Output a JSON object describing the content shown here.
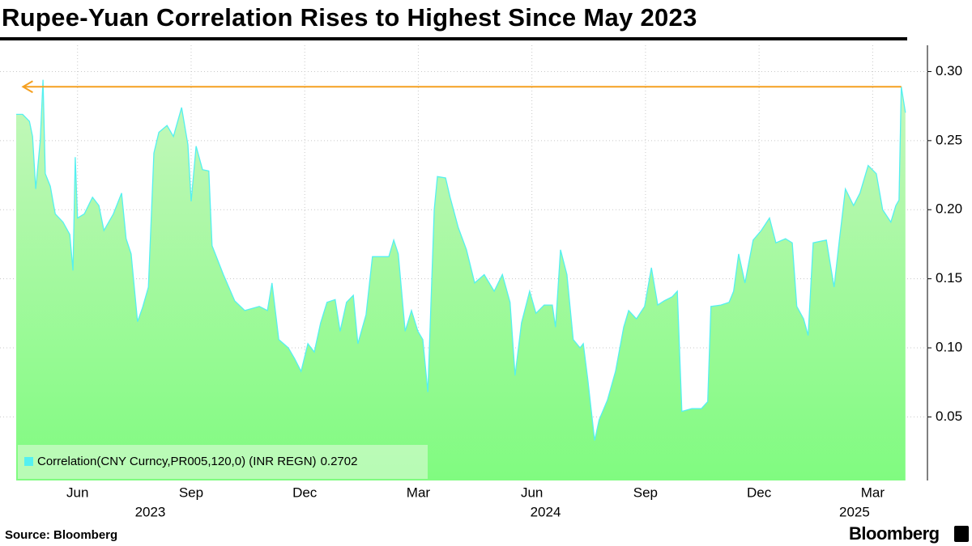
{
  "chart_data": {
    "type": "area",
    "title": "Rupee-Yuan Correlation Rises to Highest Since May 2023",
    "source": "Source: Bloomberg",
    "brand": "Bloomberg",
    "x": [
      2023.285,
      2023.299,
      2023.314,
      2023.321,
      2023.328,
      2023.338,
      2023.344,
      2023.349,
      2023.36,
      2023.371,
      2023.388,
      2023.403,
      2023.41,
      2023.415,
      2023.42,
      2023.435,
      2023.453,
      2023.467,
      2023.478,
      2023.499,
      2023.517,
      2023.527,
      2023.538,
      2023.552,
      2023.563,
      2023.576,
      2023.588,
      2023.599,
      2023.617,
      2023.631,
      2023.649,
      2023.663,
      2023.67,
      2023.681,
      2023.695,
      2023.709,
      2023.716,
      2023.741,
      2023.766,
      2023.788,
      2023.82,
      2023.838,
      2023.848,
      2023.863,
      2023.884,
      2023.898,
      2023.912,
      2023.927,
      2023.941,
      2023.955,
      2023.969,
      2023.987,
      2023.998,
      2024.012,
      2024.027,
      2024.037,
      2024.055,
      2024.069,
      2024.087,
      2024.105,
      2024.116,
      2024.126,
      2024.141,
      2024.155,
      2024.169,
      2024.18,
      2024.191,
      2024.205,
      2024.212,
      2024.23,
      2024.24,
      2024.258,
      2024.276,
      2024.294,
      2024.315,
      2024.337,
      2024.355,
      2024.372,
      2024.383,
      2024.397,
      2024.415,
      2024.429,
      2024.447,
      2024.465,
      2024.472,
      2024.483,
      2024.497,
      2024.511,
      2024.526,
      2024.533,
      2024.543,
      2024.558,
      2024.568,
      2024.586,
      2024.604,
      2024.622,
      2024.633,
      2024.65,
      2024.668,
      2024.683,
      2024.697,
      2024.711,
      2024.729,
      2024.74,
      2024.75,
      2024.772,
      2024.793,
      2024.807,
      2024.814,
      2024.836,
      2024.854,
      2024.864,
      2024.875,
      2024.889,
      2024.907,
      2024.925,
      2024.943,
      2024.957,
      2024.978,
      2024.993,
      2025.003,
      2025.018,
      2025.028,
      2025.039,
      2025.068,
      2025.085,
      2025.096,
      2025.11,
      2025.128,
      2025.142,
      2025.16,
      2025.178,
      2025.192,
      2025.21,
      2025.221,
      2025.228,
      2025.233,
      2025.242
    ],
    "series": [
      {
        "name": "Correlation(CNY Curncy,PR005,120,0) (INR REGN)",
        "color": "#55f0f0",
        "fill_top": "#c6f7bd",
        "fill_bottom": "#80fb80",
        "values": [
          0.269,
          0.269,
          0.264,
          0.253,
          0.215,
          0.25,
          0.294,
          0.226,
          0.217,
          0.197,
          0.191,
          0.182,
          0.156,
          0.238,
          0.194,
          0.197,
          0.209,
          0.203,
          0.185,
          0.197,
          0.212,
          0.179,
          0.168,
          0.119,
          0.129,
          0.144,
          0.241,
          0.256,
          0.261,
          0.253,
          0.274,
          0.247,
          0.206,
          0.246,
          0.229,
          0.228,
          0.174,
          0.153,
          0.134,
          0.127,
          0.13,
          0.127,
          0.147,
          0.106,
          0.1,
          0.092,
          0.083,
          0.103,
          0.097,
          0.118,
          0.133,
          0.135,
          0.112,
          0.133,
          0.138,
          0.103,
          0.124,
          0.166,
          0.166,
          0.166,
          0.178,
          0.168,
          0.112,
          0.127,
          0.112,
          0.106,
          0.068,
          0.2,
          0.224,
          0.223,
          0.209,
          0.187,
          0.171,
          0.147,
          0.153,
          0.141,
          0.153,
          0.133,
          0.08,
          0.118,
          0.141,
          0.125,
          0.131,
          0.131,
          0.115,
          0.171,
          0.153,
          0.106,
          0.1,
          0.103,
          0.077,
          0.033,
          0.048,
          0.062,
          0.083,
          0.115,
          0.127,
          0.121,
          0.13,
          0.158,
          0.131,
          0.134,
          0.137,
          0.141,
          0.054,
          0.056,
          0.056,
          0.061,
          0.13,
          0.131,
          0.133,
          0.141,
          0.168,
          0.147,
          0.178,
          0.185,
          0.194,
          0.176,
          0.179,
          0.176,
          0.13,
          0.121,
          0.109,
          0.176,
          0.178,
          0.144,
          0.176,
          0.215,
          0.203,
          0.212,
          0.232,
          0.226,
          0.2,
          0.191,
          0.203,
          0.207,
          0.289,
          0.2702
        ]
      }
    ],
    "annotation_line": {
      "y": 0.289,
      "x": [
        2025.233,
        2023.3
      ],
      "color": "#f5a020"
    },
    "xlim": [
      2023.285,
      2025.246
    ],
    "ylim": [
      0.004,
      0.319
    ],
    "xticks": [
      {
        "value": 2023.42,
        "label": "Jun"
      },
      {
        "value": 2023.67,
        "label": "Sep"
      },
      {
        "value": 2023.92,
        "label": "Dec"
      },
      {
        "value": 2024.17,
        "label": "Mar"
      },
      {
        "value": 2024.42,
        "label": "Jun"
      },
      {
        "value": 2024.67,
        "label": "Sep"
      },
      {
        "value": 2024.92,
        "label": "Dec"
      },
      {
        "value": 2025.17,
        "label": "Mar"
      }
    ],
    "year_labels": [
      {
        "value": 2023.58,
        "label": "2023"
      },
      {
        "value": 2024.45,
        "label": "2024"
      },
      {
        "value": 2025.13,
        "label": "2025"
      }
    ],
    "yticks": [
      0.05,
      {
        "value": 0.1,
        "label": "0.10"
      },
      0.15,
      {
        "value": 0.2,
        "label": "0.20"
      },
      0.25,
      {
        "value": 0.3,
        "label": "0.30"
      }
    ],
    "grid": true
  }
}
